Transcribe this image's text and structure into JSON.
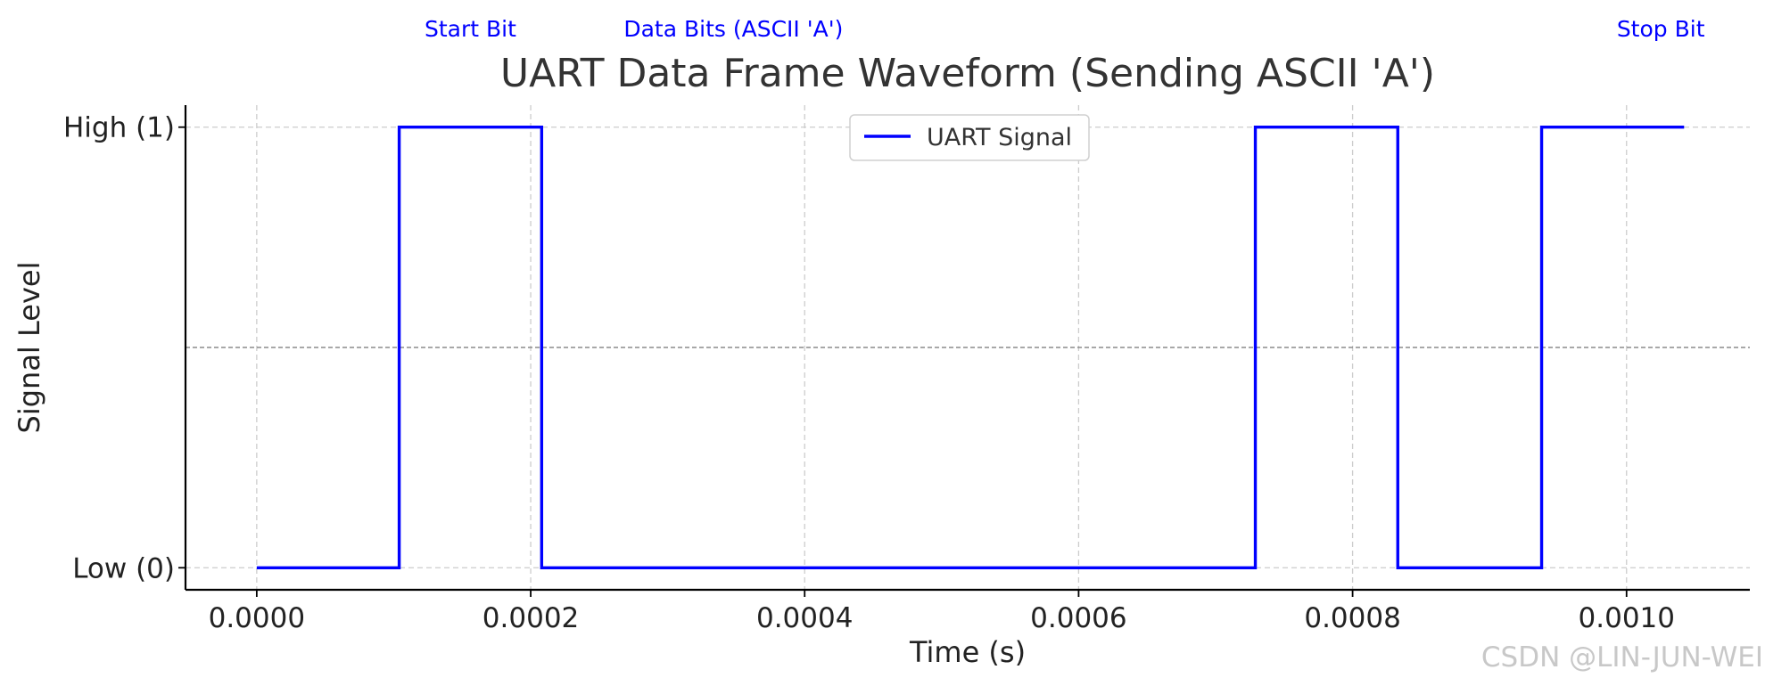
{
  "chart_data": {
    "type": "line",
    "step": true,
    "title": "UART Data Frame Waveform (Sending ASCII 'A')",
    "xlabel": "Time (s)",
    "ylabel": "Signal Level",
    "xlim": [
      -5.2e-05,
      0.00109
    ],
    "ylim": [
      -0.05,
      1.05
    ],
    "x_ticks": [
      0.0,
      0.0002,
      0.0004,
      0.0006,
      0.0008,
      0.001
    ],
    "x_tick_labels": [
      "0.0000",
      "0.0002",
      "0.0004",
      "0.0006",
      "0.0008",
      "0.0010"
    ],
    "y_ticks": [
      0,
      1
    ],
    "y_tick_labels": [
      "Low (0)",
      "High (1)"
    ],
    "grid": true,
    "threshold_line": 0.5,
    "legend": {
      "position": "top-center"
    },
    "series": [
      {
        "name": "UART Signal",
        "color": "#0000ff",
        "x": [
          0.0,
          0.000104,
          0.000104,
          0.000208,
          0.000208,
          0.000729,
          0.000729,
          0.000833,
          0.000833,
          0.000938,
          0.000938,
          0.001042
        ],
        "y": [
          0,
          0,
          1,
          1,
          0,
          0,
          1,
          1,
          0,
          0,
          1,
          1
        ]
      }
    ],
    "annotations": [
      {
        "text": "Start Bit",
        "x": 0.000156
      },
      {
        "text": "Data Bits (ASCII 'A')",
        "x": 0.000348
      },
      {
        "text": "Stop Bit",
        "x": 0.001025
      }
    ]
  },
  "watermark": "CSDN @LIN-JUN-WEI",
  "colors": {
    "signal": "#0000ff",
    "grid": "#cccccc",
    "threshold": "#8c8c8c",
    "axis": "#000000",
    "title": "#333333",
    "annotation": "#0000ff"
  }
}
